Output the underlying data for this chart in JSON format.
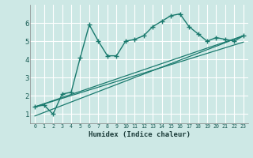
{
  "xlabel": "Humidex (Indice chaleur)",
  "xlim": [
    -0.5,
    23.5
  ],
  "ylim": [
    0.5,
    7.0
  ],
  "yticks": [
    1,
    2,
    3,
    4,
    5,
    6
  ],
  "xticks": [
    0,
    1,
    2,
    3,
    4,
    5,
    6,
    7,
    8,
    9,
    10,
    11,
    12,
    13,
    14,
    15,
    16,
    17,
    18,
    19,
    20,
    21,
    22,
    23
  ],
  "bg_color": "#cde8e5",
  "grid_color": "#ffffff",
  "line_color": "#1a7a6e",
  "line1_x": [
    0,
    1,
    2,
    3,
    4,
    5,
    6,
    7,
    8,
    9,
    10,
    11,
    12,
    13,
    14,
    15,
    16,
    17,
    18,
    19,
    20,
    21,
    22,
    23
  ],
  "line1_y": [
    1.4,
    1.5,
    1.0,
    2.1,
    2.2,
    4.1,
    5.9,
    5.0,
    4.2,
    4.2,
    5.0,
    5.1,
    5.3,
    5.8,
    6.1,
    6.4,
    6.5,
    5.8,
    5.4,
    5.0,
    5.2,
    5.1,
    5.0,
    5.3
  ],
  "line2_x": [
    0,
    23
  ],
  "line2_y": [
    1.4,
    5.3
  ],
  "line3_x": [
    0,
    23
  ],
  "line3_y": [
    0.9,
    5.3
  ],
  "line4_x": [
    0,
    23
  ],
  "line4_y": [
    1.4,
    4.95
  ]
}
